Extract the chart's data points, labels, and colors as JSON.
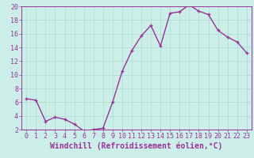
{
  "x": [
    0,
    1,
    2,
    3,
    4,
    5,
    6,
    7,
    8,
    9,
    10,
    11,
    12,
    13,
    14,
    15,
    16,
    17,
    18,
    19,
    20,
    21,
    22,
    23
  ],
  "y": [
    6.5,
    6.3,
    3.2,
    3.8,
    3.5,
    2.8,
    1.8,
    2.0,
    2.2,
    6.0,
    10.5,
    13.5,
    15.7,
    17.2,
    14.2,
    19.0,
    19.2,
    20.2,
    19.3,
    18.8,
    16.5,
    15.5,
    14.8,
    13.2
  ],
  "line_color": "#993399",
  "marker": "+",
  "marker_color": "#993399",
  "bg_color": "#cceee8",
  "grid_color": "#aaddcc",
  "xlabel": "Windchill (Refroidissement éolien,°C)",
  "ylabel": "",
  "xlim": [
    -0.5,
    23.5
  ],
  "ylim": [
    2,
    20
  ],
  "yticks": [
    2,
    4,
    6,
    8,
    10,
    12,
    14,
    16,
    18,
    20
  ],
  "xticks": [
    0,
    1,
    2,
    3,
    4,
    5,
    6,
    7,
    8,
    9,
    10,
    11,
    12,
    13,
    14,
    15,
    16,
    17,
    18,
    19,
    20,
    21,
    22,
    23
  ],
  "tick_color": "#993399",
  "axis_color": "#993399",
  "xlabel_fontsize": 7.0,
  "tick_fontsize": 6.0,
  "line_width": 1.0,
  "marker_size": 3.5
}
